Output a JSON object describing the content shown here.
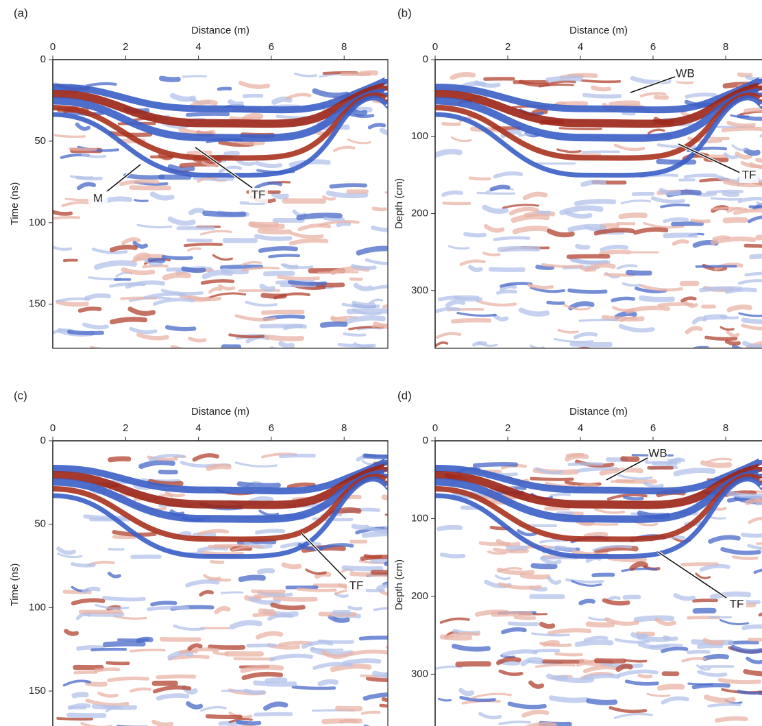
{
  "chart_data": [
    {
      "type": "radargram",
      "panel_label": "(a)",
      "x_label": "Distance (m)",
      "y_label": "Time (ns)",
      "xlim": [
        0,
        9.2
      ],
      "ylim": [
        0,
        177
      ],
      "xticks": [
        0,
        2,
        4,
        6,
        8
      ],
      "yticks": [
        0,
        50,
        100,
        150
      ],
      "annotations": [
        "M",
        "TF"
      ]
    },
    {
      "type": "radargram",
      "panel_label": "(b)",
      "x_label": "Distance (m)",
      "y_label": "Depth (cm)",
      "xlim": [
        0,
        9
      ],
      "ylim": [
        0,
        375
      ],
      "xticks": [
        0,
        2,
        4,
        6,
        8
      ],
      "yticks": [
        0,
        100,
        200,
        300
      ],
      "annotations": [
        "WB",
        "TF"
      ]
    },
    {
      "type": "radargram",
      "panel_label": "(c)",
      "x_label": "Distance (m)",
      "y_label": "Time (ns)",
      "xlim": [
        0,
        9.2
      ],
      "ylim": [
        0,
        173
      ],
      "xticks": [
        0,
        2,
        4,
        6,
        8
      ],
      "yticks": [
        0,
        50,
        100,
        150
      ],
      "annotations": [
        "TF"
      ]
    },
    {
      "type": "radargram",
      "panel_label": "(d)",
      "x_label": "Distance (m)",
      "y_label": "Depth (cm)",
      "xlim": [
        0,
        9
      ],
      "ylim": [
        0,
        371
      ],
      "xticks": [
        0,
        2,
        4,
        6,
        8
      ],
      "yticks": [
        0,
        100,
        200,
        300
      ],
      "annotations": [
        "WB",
        "TF"
      ]
    }
  ]
}
